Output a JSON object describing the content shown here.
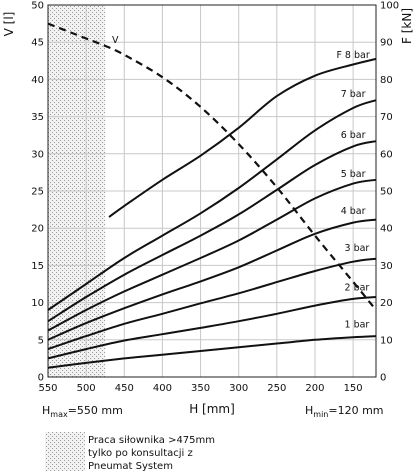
{
  "chart_data": {
    "type": "line",
    "xlabel": "H [mm]",
    "ylabel_left": "V [l]",
    "ylabel_right": "F [kN]",
    "x_ticks": [
      550,
      500,
      450,
      400,
      350,
      300,
      250,
      200,
      150
    ],
    "xlim": [
      550,
      120
    ],
    "ylim_left": [
      0,
      50
    ],
    "ylim_right": [
      0,
      100
    ],
    "y_ticks_left": [
      0,
      5,
      10,
      15,
      20,
      25,
      30,
      35,
      40,
      45,
      50
    ],
    "y_ticks_right": [
      0,
      10,
      20,
      30,
      40,
      50,
      60,
      70,
      80,
      90,
      100
    ],
    "grid": true,
    "volume_series": {
      "name": "V",
      "axis": "left",
      "style": "dashed",
      "x": [
        550,
        500,
        475,
        450,
        400,
        350,
        300,
        250,
        200,
        150,
        120
      ],
      "y": [
        47.5,
        45.5,
        44.5,
        43.3,
        40.3,
        36.3,
        31.3,
        25.5,
        19.0,
        12.8,
        9.0
      ]
    },
    "force_series": [
      {
        "name": "1 bar",
        "label_at": [
          145,
          12.5
        ],
        "x": [
          550,
          500,
          450,
          400,
          350,
          300,
          250,
          200,
          150,
          120
        ],
        "y": [
          2.5,
          3.8,
          5.0,
          6.0,
          7.0,
          8.0,
          9.0,
          10.0,
          10.7,
          11.0
        ]
      },
      {
        "name": "2 bar",
        "label_at": [
          145,
          22.5
        ],
        "x": [
          550,
          500,
          450,
          400,
          350,
          300,
          250,
          200,
          150,
          120
        ],
        "y": [
          5.0,
          7.5,
          9.8,
          11.5,
          13.2,
          15.0,
          17.0,
          19.2,
          21.0,
          21.5
        ]
      },
      {
        "name": "3 bar",
        "label_at": [
          145,
          33
        ],
        "x": [
          550,
          500,
          450,
          400,
          350,
          300,
          250,
          200,
          150,
          120
        ],
        "y": [
          7.5,
          11.0,
          14.3,
          17.0,
          19.8,
          22.5,
          25.5,
          28.5,
          31.0,
          31.8
        ]
      },
      {
        "name": "4 bar",
        "label_at": [
          150,
          43
        ],
        "x": [
          550,
          500,
          450,
          400,
          350,
          300,
          250,
          200,
          150,
          120
        ],
        "y": [
          10.0,
          14.5,
          18.5,
          22.2,
          25.7,
          29.5,
          34.0,
          38.5,
          41.5,
          42.3
        ]
      },
      {
        "name": "5 bar",
        "label_at": [
          150,
          53
        ],
        "x": [
          550,
          500,
          450,
          400,
          350,
          300,
          250,
          200,
          150,
          120
        ],
        "y": [
          12.5,
          18.0,
          23.0,
          27.5,
          32.0,
          36.7,
          42.3,
          48.0,
          52.0,
          53.0
        ]
      },
      {
        "name": "6 bar",
        "label_at": [
          150,
          63.5
        ],
        "x": [
          550,
          500,
          450,
          400,
          350,
          300,
          250,
          200,
          150,
          120
        ],
        "y": [
          15.0,
          21.5,
          27.5,
          32.8,
          38.0,
          43.7,
          50.3,
          57.0,
          62.0,
          63.4
        ]
      },
      {
        "name": "7 bar",
        "label_at": [
          150,
          74.5
        ],
        "x": [
          550,
          500,
          450,
          400,
          350,
          300,
          250,
          200,
          150,
          120
        ],
        "y": [
          18.0,
          25.0,
          32.0,
          38.0,
          44.0,
          50.8,
          58.5,
          66.3,
          72.3,
          74.4
        ]
      },
      {
        "name": "F 8 bar",
        "label_at": [
          150,
          85
        ],
        "x": [
          470,
          450,
          400,
          350,
          300,
          250,
          200,
          150,
          120
        ],
        "y": [
          43.0,
          46.0,
          53.0,
          59.5,
          67.0,
          75.5,
          81.0,
          84.0,
          85.5
        ]
      }
    ],
    "hatched_region": {
      "x_from": 550,
      "x_to": 475
    },
    "annotations": {
      "v_label": "V",
      "h_max": "H",
      "h_max_sub": "max",
      "h_max_value": "=550 mm",
      "h_min": "H",
      "h_min_sub": "min",
      "h_min_value": "=120 mm"
    },
    "legend_note": [
      "Praca siłownika >475mm",
      "tylko po konsultacji z",
      "Pneumat System"
    ]
  }
}
